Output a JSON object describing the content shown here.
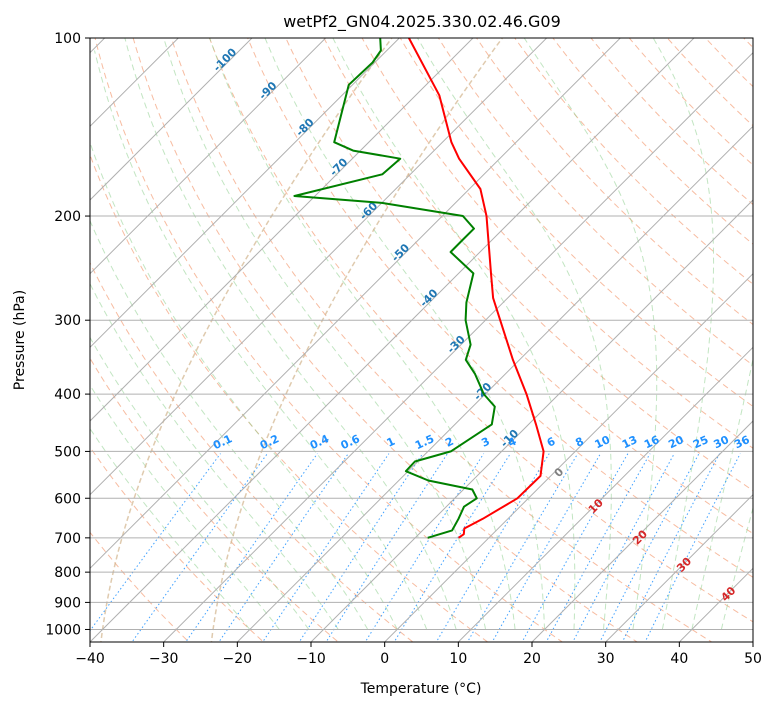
{
  "chart_data": {
    "type": "line",
    "subtype": "skew-t log-p diagram",
    "title": "wetPf2_GN04.2025.330.02.46.G09",
    "xlabel": "Temperature (°C)",
    "ylabel": "Pressure (hPa)",
    "xlim": [
      -40,
      50
    ],
    "ylim": [
      1050,
      100
    ],
    "y_scale": "log",
    "grid": true,
    "x_ticks": [
      -40,
      -30,
      -20,
      -10,
      0,
      10,
      20,
      30,
      40,
      50
    ],
    "y_ticks": [
      1000,
      900,
      800,
      700,
      600,
      500,
      400,
      300,
      200,
      100
    ],
    "series": [
      {
        "role": "temperature",
        "color": "#ff0000",
        "points": [
          {
            "p": 700,
            "t": -4.1
          },
          {
            "p": 690,
            "t": -3.9
          },
          {
            "p": 675,
            "t": -4.6
          },
          {
            "p": 650,
            "t": -3.4
          },
          {
            "p": 600,
            "t": -1.5
          },
          {
            "p": 550,
            "t": -1.4
          },
          {
            "p": 500,
            "t": -4.3
          },
          {
            "p": 450,
            "t": -9.0
          },
          {
            "p": 400,
            "t": -14.4
          },
          {
            "p": 350,
            "t": -20.9
          },
          {
            "p": 300,
            "t": -28.0
          },
          {
            "p": 275,
            "t": -32.0
          },
          {
            "p": 250,
            "t": -35.6
          },
          {
            "p": 200,
            "t": -44.0
          },
          {
            "p": 180,
            "t": -48.5
          },
          {
            "p": 160,
            "t": -55.5
          },
          {
            "p": 150,
            "t": -58.8
          },
          {
            "p": 125,
            "t": -66.8
          },
          {
            "p": 100,
            "t": -78.7
          }
        ]
      },
      {
        "role": "dewpoint",
        "color": "#008000",
        "points": [
          {
            "p": 700,
            "t": -8.3
          },
          {
            "p": 680,
            "t": -6.0
          },
          {
            "p": 650,
            "t": -6.7
          },
          {
            "p": 620,
            "t": -7.6
          },
          {
            "p": 600,
            "t": -7.0
          },
          {
            "p": 580,
            "t": -8.8
          },
          {
            "p": 560,
            "t": -16.0
          },
          {
            "p": 540,
            "t": -20.3
          },
          {
            "p": 520,
            "t": -20.4
          },
          {
            "p": 500,
            "t": -16.9
          },
          {
            "p": 450,
            "t": -15.0
          },
          {
            "p": 420,
            "t": -17.0
          },
          {
            "p": 400,
            "t": -20.2
          },
          {
            "p": 370,
            "t": -24.1
          },
          {
            "p": 350,
            "t": -27.3
          },
          {
            "p": 330,
            "t": -28.7
          },
          {
            "p": 300,
            "t": -32.7
          },
          {
            "p": 280,
            "t": -35.0
          },
          {
            "p": 250,
            "t": -38.0
          },
          {
            "p": 230,
            "t": -44.0
          },
          {
            "p": 220,
            "t": -44.0
          },
          {
            "p": 210,
            "t": -44.0
          },
          {
            "p": 200,
            "t": -47.2
          },
          {
            "p": 190,
            "t": -60.0
          },
          {
            "p": 185,
            "t": -72.8
          },
          {
            "p": 170,
            "t": -63.8
          },
          {
            "p": 160,
            "t": -63.5
          },
          {
            "p": 155,
            "t": -71.0
          },
          {
            "p": 150,
            "t": -74.7
          },
          {
            "p": 120,
            "t": -80.5
          },
          {
            "p": 110,
            "t": -80.3
          },
          {
            "p": 105,
            "t": -80.8
          },
          {
            "p": 100,
            "t": -82.6
          }
        ]
      }
    ],
    "isotherm_labels": {
      "values": [
        "-100",
        "-90",
        "-80",
        "-70",
        "-60",
        "-50",
        "-40",
        "-30",
        "-20",
        "-10"
      ],
      "color": "#1f77b4"
    },
    "mixing_ratio_labels": {
      "values": [
        "0.1",
        "0.2",
        "0.4",
        "0.6",
        "1",
        "1.5",
        "2",
        "3",
        "4",
        "6",
        "8",
        "10",
        "13",
        "16",
        "20",
        "25",
        "30",
        "36"
      ],
      "color": "#1e90ff"
    },
    "moist_adiabat_labels": {
      "values": [
        "0",
        "10",
        "20",
        "30",
        "40"
      ],
      "colors": [
        "#808080",
        "#d62728",
        "#d62728",
        "#d62728",
        "#d62728"
      ]
    }
  }
}
